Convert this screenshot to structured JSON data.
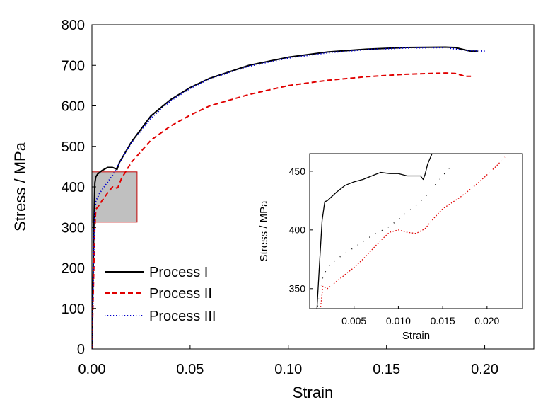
{
  "chart_data": [
    {
      "type": "line",
      "title": "",
      "xlabel": "Strain",
      "ylabel": "Stress / MPa",
      "xlim": [
        0,
        0.225
      ],
      "ylim": [
        0,
        800
      ],
      "xticks": [
        0.0,
        0.05,
        0.1,
        0.15,
        0.2
      ],
      "xtick_labels": [
        "0.00",
        "0.05",
        "0.10",
        "0.15",
        "0.20"
      ],
      "yticks": [
        0,
        100,
        200,
        300,
        400,
        500,
        600,
        700,
        800
      ],
      "ytick_labels": [
        "0",
        "100",
        "200",
        "300",
        "400",
        "500",
        "600",
        "700",
        "800"
      ],
      "grid": false,
      "legend": "bottom-left",
      "highlight_region": {
        "x": [
          0.0,
          0.023
        ],
        "y": [
          313,
          437
        ],
        "fill": "#c0c0c0",
        "stroke": "#c00000"
      },
      "series": [
        {
          "name": "Process I",
          "color": "#000000",
          "style": "solid",
          "x": [
            0.0,
            0.0005,
            0.001,
            0.0015,
            0.002,
            0.003,
            0.005,
            0.008,
            0.0105,
            0.012,
            0.0128,
            0.014,
            0.02,
            0.03,
            0.04,
            0.05,
            0.06,
            0.08,
            0.1,
            0.12,
            0.14,
            0.16,
            0.18,
            0.185,
            0.19,
            0.193,
            0.1965
          ],
          "y": [
            0,
            150,
            300,
            410,
            425,
            432,
            440,
            448,
            448,
            445,
            443,
            460,
            510,
            575,
            615,
            645,
            668,
            700,
            720,
            733,
            740,
            744,
            745,
            744,
            738,
            735,
            735
          ]
        },
        {
          "name": "Process II",
          "color": "#e00000",
          "style": "dashed",
          "x": [
            0.0,
            0.001,
            0.0015,
            0.002,
            0.003,
            0.005,
            0.008,
            0.0105,
            0.012,
            0.0132,
            0.015,
            0.02,
            0.03,
            0.04,
            0.05,
            0.06,
            0.08,
            0.1,
            0.12,
            0.14,
            0.16,
            0.18,
            0.185,
            0.19,
            0.193
          ],
          "y": [
            0,
            200,
            300,
            345,
            350,
            365,
            385,
            400,
            397,
            398,
            420,
            460,
            515,
            550,
            577,
            600,
            628,
            650,
            663,
            672,
            678,
            681,
            680,
            673,
            673
          ]
        },
        {
          "name": "Process III",
          "color": "#0000cc",
          "style": "dotted",
          "x": [
            0.0,
            0.0005,
            0.001,
            0.0015,
            0.002,
            0.004,
            0.007,
            0.01,
            0.012,
            0.014,
            0.02,
            0.03,
            0.04,
            0.05,
            0.06,
            0.08,
            0.1,
            0.12,
            0.14,
            0.16,
            0.18,
            0.19,
            0.2
          ],
          "y": [
            0,
            120,
            250,
            340,
            365,
            385,
            405,
            425,
            440,
            460,
            508,
            570,
            612,
            643,
            667,
            698,
            718,
            731,
            739,
            743,
            744,
            737,
            735
          ]
        }
      ]
    },
    {
      "type": "line",
      "title": "",
      "xlabel": "Strain",
      "ylabel": "Stress / MPa",
      "xlim": [
        0.0,
        0.024
      ],
      "ylim": [
        333,
        465
      ],
      "xticks": [
        0.005,
        0.01,
        0.015,
        0.02
      ],
      "xtick_labels": [
        "0.005",
        "0.010",
        "0.015",
        "0.020"
      ],
      "yticks": [
        350,
        400,
        450
      ],
      "ytick_labels": [
        "350",
        "400",
        "450"
      ],
      "grid": false,
      "legend": "none",
      "series": [
        {
          "name": "Process I",
          "color": "#000000",
          "style": "solid",
          "x": [
            0.0008,
            0.0011,
            0.0014,
            0.0017,
            0.002,
            0.003,
            0.004,
            0.005,
            0.006,
            0.007,
            0.008,
            0.009,
            0.01,
            0.011,
            0.012,
            0.0125,
            0.0128,
            0.013,
            0.0133,
            0.0138
          ],
          "y": [
            330,
            370,
            408,
            424,
            425,
            432,
            438,
            441,
            443,
            446,
            449,
            448,
            448,
            446,
            446,
            446,
            443,
            447,
            456,
            465
          ]
        },
        {
          "name": "Process II",
          "color": "#e00000",
          "style": "dotted",
          "x": [
            0.0012,
            0.0015,
            0.002,
            0.003,
            0.004,
            0.005,
            0.006,
            0.007,
            0.008,
            0.009,
            0.01,
            0.011,
            0.012,
            0.013,
            0.014,
            0.015,
            0.016,
            0.017,
            0.018,
            0.019,
            0.02,
            0.021,
            0.022
          ],
          "y": [
            332,
            352,
            350,
            356,
            362,
            368,
            375,
            383,
            391,
            398,
            400,
            398,
            397,
            401,
            410,
            418,
            423,
            428,
            434,
            440,
            447,
            454,
            462
          ]
        },
        {
          "name": "Process III",
          "color": "#000000",
          "style": "sparse",
          "x": [
            0.0009,
            0.0012,
            0.0015,
            0.002,
            0.003,
            0.004,
            0.005,
            0.006,
            0.007,
            0.008,
            0.009,
            0.01,
            0.011,
            0.012,
            0.013,
            0.014,
            0.015,
            0.016
          ],
          "y": [
            335,
            350,
            360,
            368,
            375,
            380,
            385,
            390,
            395,
            399,
            403,
            409,
            415,
            421,
            428,
            437,
            446,
            455
          ]
        }
      ]
    }
  ]
}
